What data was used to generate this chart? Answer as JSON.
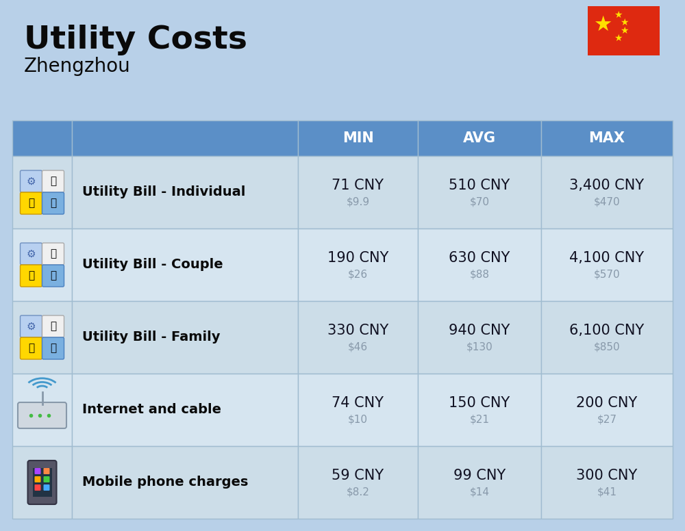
{
  "title": "Utility Costs",
  "subtitle": "Zhengzhou",
  "background_color": "#b8d0e8",
  "header_bg_color": "#5b8fc7",
  "header_text_color": "#ffffff",
  "categories": [
    "Utility Bill - Individual",
    "Utility Bill - Couple",
    "Utility Bill - Family",
    "Internet and cable",
    "Mobile phone charges"
  ],
  "min_cny": [
    "71 CNY",
    "190 CNY",
    "330 CNY",
    "74 CNY",
    "59 CNY"
  ],
  "min_usd": [
    "$9.9",
    "$26",
    "$46",
    "$10",
    "$8.2"
  ],
  "avg_cny": [
    "510 CNY",
    "630 CNY",
    "940 CNY",
    "150 CNY",
    "99 CNY"
  ],
  "avg_usd": [
    "$70",
    "$88",
    "$130",
    "$21",
    "$14"
  ],
  "max_cny": [
    "3,400 CNY",
    "4,100 CNY",
    "6,100 CNY",
    "200 CNY",
    "300 CNY"
  ],
  "max_usd": [
    "$470",
    "$570",
    "$850",
    "$27",
    "$41"
  ],
  "col_headers": [
    "MIN",
    "AVG",
    "MAX"
  ],
  "usd_color": "#8899aa",
  "cny_color": "#111122",
  "label_color": "#0a0a0a",
  "row_colors": [
    "#ccdde8",
    "#d6e5f0",
    "#ccdde8",
    "#d6e5f0",
    "#ccdde8"
  ],
  "header_font_size": 15,
  "label_font_size": 14,
  "value_font_size": 15,
  "usd_font_size": 11,
  "title_font_size": 34,
  "subtitle_font_size": 20,
  "flag_color": "#de2910",
  "star_color": "#ffde00",
  "edge_color": "#a0bcd0"
}
